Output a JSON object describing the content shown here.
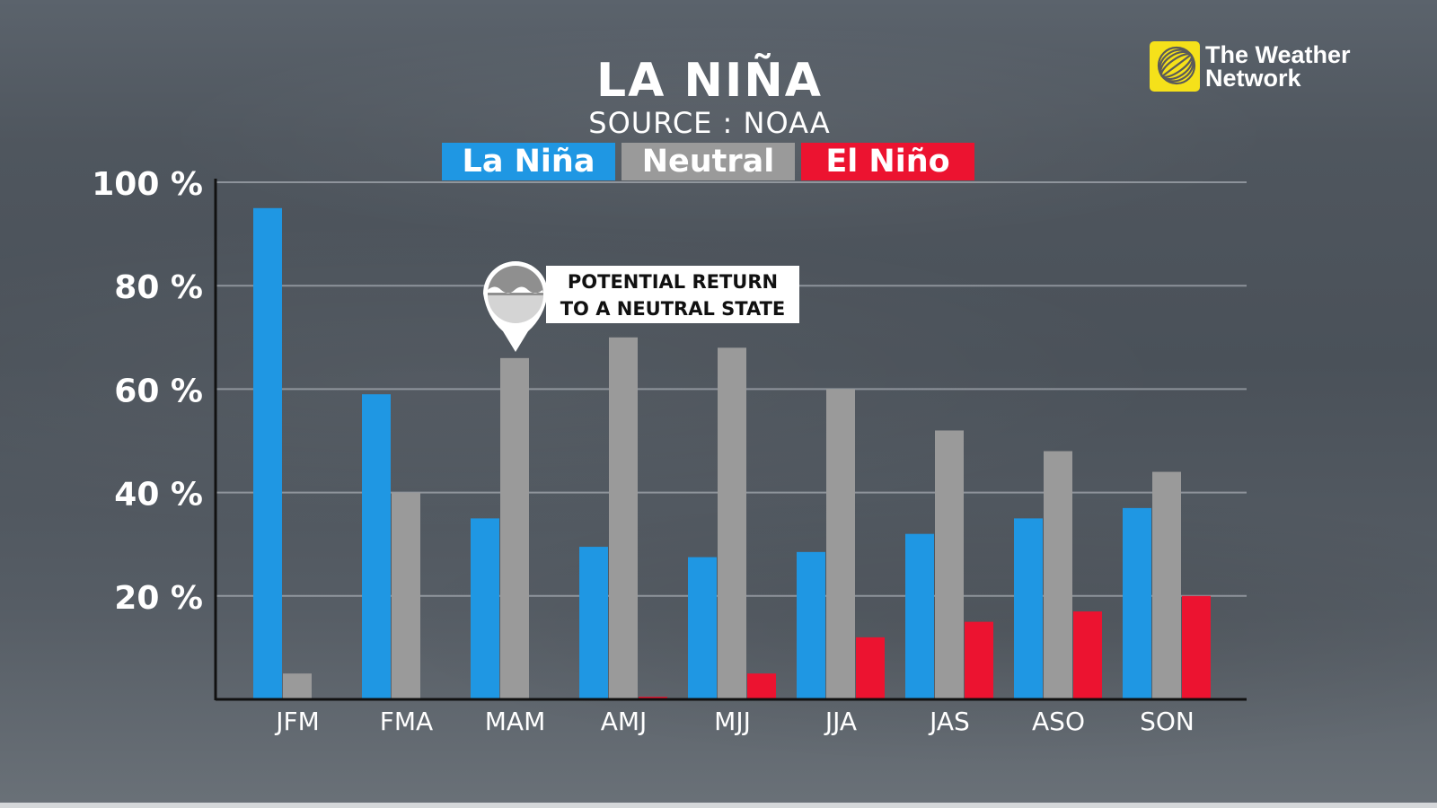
{
  "title": "LA NIÑA",
  "subtitle": "SOURCE : NOAA",
  "brand": {
    "line1": "The Weather",
    "line2": "Network",
    "logo_icon": "weather-network-logo",
    "logo_color": "#f5e11a"
  },
  "legend": [
    {
      "label": "La Niña",
      "color": "#1f97e3"
    },
    {
      "label": "Neutral",
      "color": "#9a9a9a"
    },
    {
      "label": "El Niño",
      "color": "#ec1330"
    }
  ],
  "callout": {
    "line1": "POTENTIAL RETURN",
    "line2": "TO A NEUTRAL STATE",
    "icon": "ocean-waves-pin-icon",
    "points_to": "MAM"
  },
  "chart_data": {
    "type": "bar",
    "categories": [
      "JFM",
      "FMA",
      "MAM",
      "AMJ",
      "MJJ",
      "JJA",
      "JAS",
      "ASO",
      "SON"
    ],
    "series": [
      {
        "name": "La Niña",
        "color": "#1f97e3",
        "values": [
          95,
          59,
          35,
          29.5,
          27.5,
          28.5,
          32,
          35,
          37
        ]
      },
      {
        "name": "Neutral",
        "color": "#9a9a9a",
        "values": [
          5,
          40,
          66,
          70,
          68,
          60,
          52,
          48,
          44
        ]
      },
      {
        "name": "El Niño",
        "color": "#ec1330",
        "values": [
          0,
          0,
          0,
          0.5,
          5,
          12,
          15,
          17,
          20
        ]
      }
    ],
    "y_ticks": [
      "20 %",
      "40 %",
      "60 %",
      "80 %",
      "100 %"
    ],
    "y_tick_values": [
      20,
      40,
      60,
      80,
      100
    ],
    "ylim": [
      0,
      100
    ],
    "grid": true,
    "legend_position": "top-center"
  }
}
